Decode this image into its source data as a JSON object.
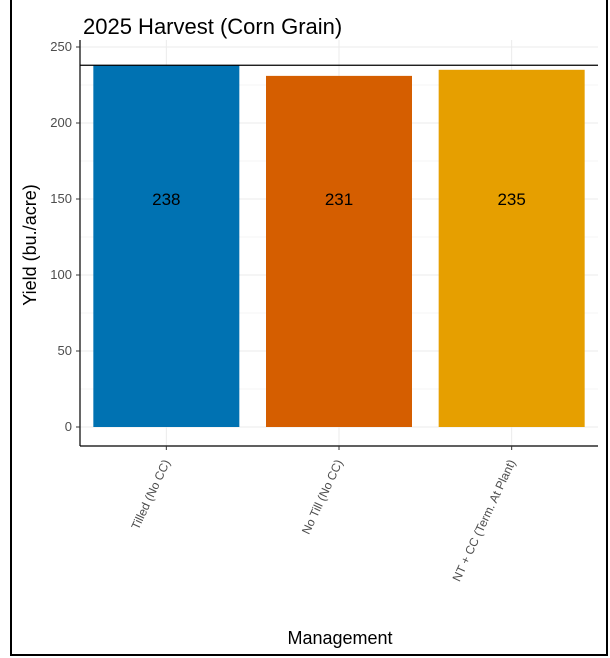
{
  "chart_data": {
    "type": "bar",
    "title": "2025 Harvest (Corn Grain)",
    "xlabel": "Management",
    "ylabel": "Yield (bu./acre)",
    "categories": [
      "Tilled (No CC)",
      "No Till (No CC)",
      "NT + CC (Term. At Plant)"
    ],
    "values": [
      238,
      231,
      235
    ],
    "data_labels": [
      "238",
      "231",
      "235"
    ],
    "colors": [
      "#0072B2",
      "#D55E00",
      "#E69F00"
    ],
    "ylim": [
      0,
      250
    ],
    "yticks": [
      0,
      50,
      100,
      150,
      200,
      250
    ],
    "reference_line": 238,
    "grid": true
  }
}
